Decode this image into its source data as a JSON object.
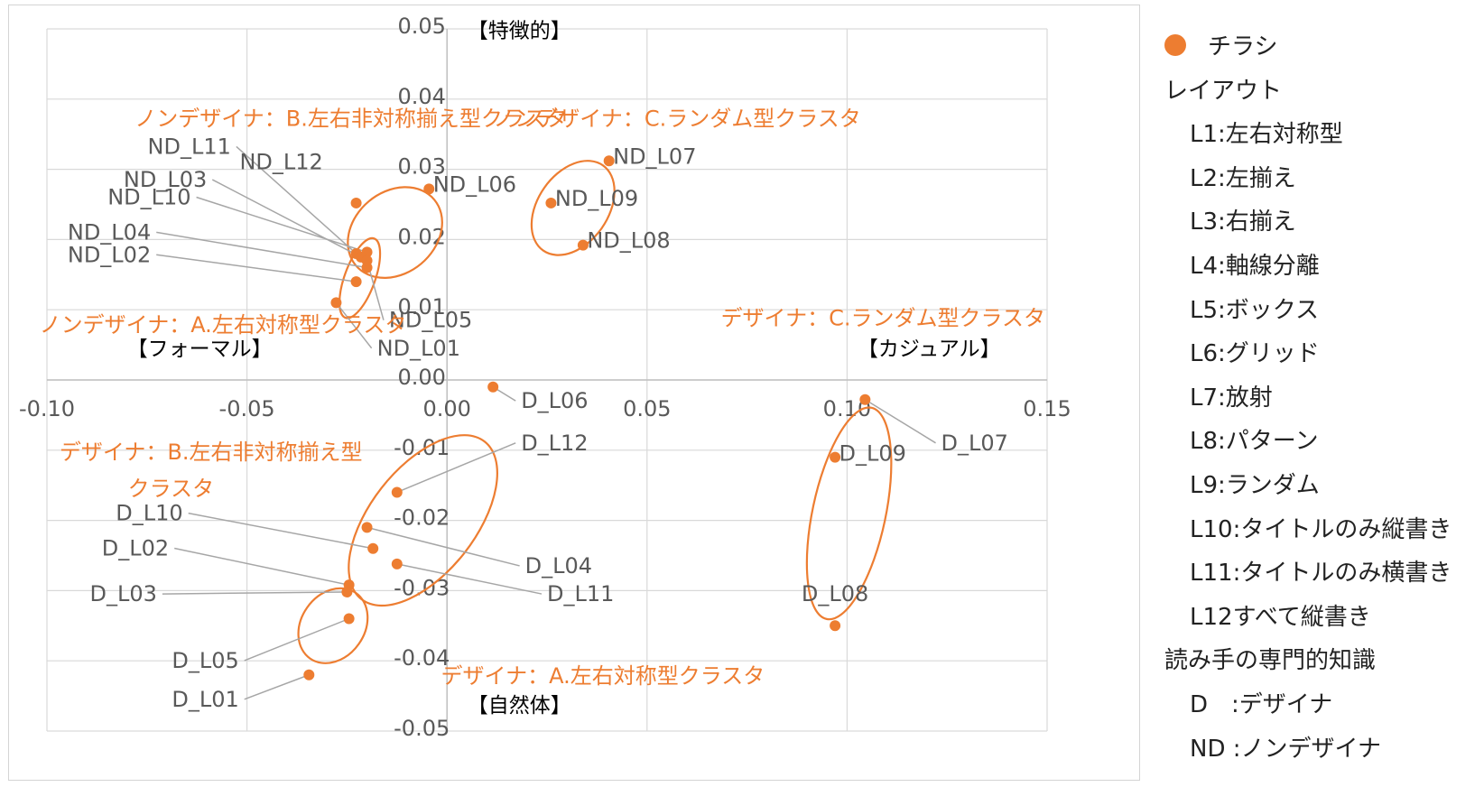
{
  "chart_data": {
    "type": "scatter",
    "xlim": [
      -0.1,
      0.15
    ],
    "ylim": [
      -0.05,
      0.05
    ],
    "x_ticks": [
      "-0.10",
      "-0.05",
      "0.00",
      "0.05",
      "0.10",
      "0.15"
    ],
    "y_ticks": [
      "0.05",
      "0.04",
      "0.03",
      "0.02",
      "0.01",
      "0.00",
      "-0.01",
      "-0.02",
      "-0.03",
      "-0.04",
      "-0.05"
    ],
    "grid": true,
    "legend_position": "right",
    "marker_color": "#ED7D31",
    "series": [
      {
        "name": "チラシ",
        "points": [
          {
            "label": "ND_L11",
            "x": -0.0227,
            "y": 0.018
          },
          {
            "label": "ND_L12",
            "x": -0.0227,
            "y": 0.0252
          },
          {
            "label": "ND_L03",
            "x": -0.0215,
            "y": 0.0175
          },
          {
            "label": "ND_L10",
            "x": -0.02,
            "y": 0.0182
          },
          {
            "label": "ND_L04",
            "x": -0.02,
            "y": 0.016
          },
          {
            "label": "ND_L02",
            "x": -0.0227,
            "y": 0.014
          },
          {
            "label": "ND_L05",
            "x": -0.02,
            "y": 0.017
          },
          {
            "label": "ND_L01",
            "x": -0.0277,
            "y": 0.011
          },
          {
            "label": "ND_L06",
            "x": -0.0045,
            "y": 0.0272
          },
          {
            "label": "ND_L07",
            "x": 0.0405,
            "y": 0.0312
          },
          {
            "label": "ND_L09",
            "x": 0.026,
            "y": 0.0252
          },
          {
            "label": "ND_L08",
            "x": 0.034,
            "y": 0.0192
          },
          {
            "label": "D_L06",
            "x": 0.0115,
            "y": -0.001
          },
          {
            "label": "D_L12",
            "x": -0.0125,
            "y": -0.016
          },
          {
            "label": "D_L04",
            "x": -0.02,
            "y": -0.021
          },
          {
            "label": "D_L10",
            "x": -0.0185,
            "y": -0.024
          },
          {
            "label": "D_L11",
            "x": -0.0125,
            "y": -0.0262
          },
          {
            "label": "D_L02",
            "x": -0.0245,
            "y": -0.0292
          },
          {
            "label": "D_L03",
            "x": -0.025,
            "y": -0.0302
          },
          {
            "label": "D_L05",
            "x": -0.0245,
            "y": -0.034
          },
          {
            "label": "D_L01",
            "x": -0.0345,
            "y": -0.042
          },
          {
            "label": "D_L07",
            "x": 0.1045,
            "y": -0.0028
          },
          {
            "label": "D_L09",
            "x": 0.097,
            "y": -0.011
          },
          {
            "label": "D_L08",
            "x": 0.097,
            "y": -0.035
          }
        ]
      }
    ],
    "quadrant_labels": {
      "top": "【特徴的】",
      "bottom": "【自然体】",
      "left": "【フォーマル】",
      "right": "【カジュアル】"
    },
    "cluster_labels": [
      {
        "text": "ノンデザイナ：B.左右非対称揃え型クラスタ"
      },
      {
        "text": "ノンデザイナ：C.ランダム型クラスタ"
      },
      {
        "text": "ノンデザイナ：A.左右対称型クラスタ"
      },
      {
        "text": "デザイナ：C.ランダム型クラスタ"
      },
      {
        "text": "デザイナ：B.左右非対称揃え型"
      },
      {
        "text": "クラスタ"
      },
      {
        "text": "デザイナ：A.左右対称型クラスタ"
      }
    ]
  },
  "legend": {
    "series": "チラシ",
    "layout_title": "レイアウト",
    "layout_items": [
      "L1:左右対称型",
      "L2:左揃え",
      "L3:右揃え",
      "L4:軸線分離",
      "L5:ボックス",
      "L6:グリッド",
      "L7:放射",
      "L8:パターン",
      "L9:ランダム",
      "L10:タイトルのみ縦書き",
      "L11:タイトルのみ横書き",
      "L12すべて縦書き"
    ],
    "reader_title": "読み手の専門的知識",
    "reader_items": [
      "D　:デザイナ",
      "ND :ノンデザイナ"
    ]
  }
}
